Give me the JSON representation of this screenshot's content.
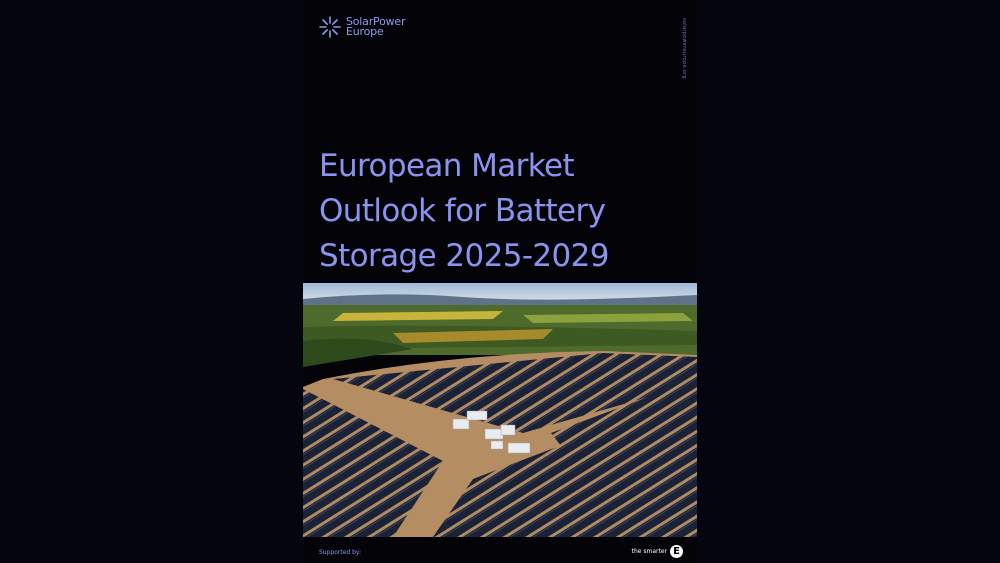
{
  "header": {
    "logo_lines": [
      "SolarPower",
      "Europe"
    ],
    "website": "solarpowereurope.org"
  },
  "title_lines": [
    "European Market",
    "Outlook for Battery",
    "Storage 2025-2029"
  ],
  "footer": {
    "supported_by": "Supported by:",
    "sponsor_prefix": "the smarter",
    "sponsor_mark": "E"
  }
}
